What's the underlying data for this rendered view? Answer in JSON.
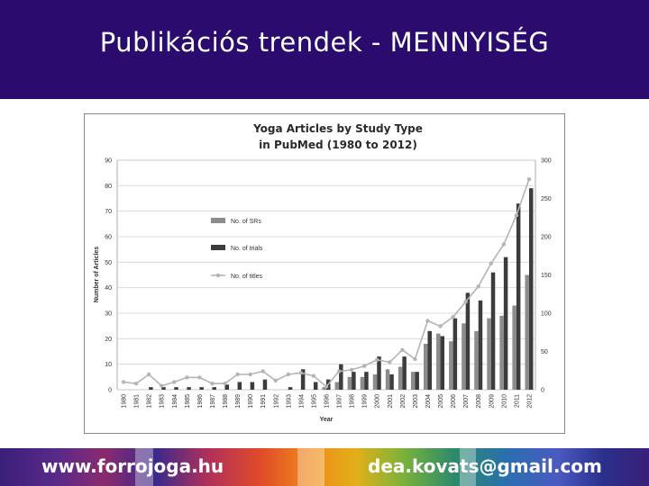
{
  "slide": {
    "title": "Publikációs trendek - MENNYISÉG"
  },
  "footer": {
    "website": "www.forrojoga.hu",
    "email": "dea.kovats@gmail.com"
  },
  "colors": {
    "header_bg": "#2b0b6e",
    "srs": "#8c8c8c",
    "trials": "#3c3c3c",
    "titles": "#b4b4b4"
  },
  "chart_data": {
    "type": "bar",
    "title": "Yoga Articles by Study Type",
    "subtitle": "in PubMed (1980 to 2012)",
    "xlabel": "Year",
    "ylabel": "Number of Articles",
    "ylim": [
      0,
      90
    ],
    "y2lim": [
      0,
      300
    ],
    "y_ticks": [
      0,
      10,
      20,
      30,
      40,
      50,
      60,
      70,
      80,
      90
    ],
    "y2_ticks": [
      0,
      50,
      100,
      150,
      200,
      250,
      300
    ],
    "grid": true,
    "legend_position": "top-left",
    "categories": [
      "1980",
      "1981",
      "1982",
      "1983",
      "1984",
      "1985",
      "1986",
      "1987",
      "1988",
      "1989",
      "1990",
      "1991",
      "1992",
      "1993",
      "1994",
      "1995",
      "1996",
      "1997",
      "1998",
      "1999",
      "2000",
      "2001",
      "2002",
      "2003",
      "2004",
      "2005",
      "2006",
      "2007",
      "2008",
      "2009",
      "2010",
      "2011",
      "2012"
    ],
    "series": [
      {
        "name": "No. of SRs",
        "axis": "left",
        "type": "bar",
        "values": [
          0,
          0,
          0,
          0,
          0,
          0,
          0,
          0,
          0,
          0,
          0,
          0,
          0,
          0,
          0,
          0,
          1,
          3,
          5,
          5,
          6,
          8,
          9,
          7,
          18,
          22,
          19,
          26,
          23,
          28,
          29,
          33,
          45
        ]
      },
      {
        "name": "No. of trials",
        "axis": "left",
        "type": "bar",
        "values": [
          0,
          0,
          1,
          1,
          1,
          1,
          1,
          1,
          2,
          3,
          3,
          4,
          0,
          1,
          8,
          3,
          4,
          10,
          7,
          7,
          13,
          6,
          13,
          7,
          23,
          21,
          28,
          38,
          35,
          46,
          52,
          73,
          79
        ]
      },
      {
        "name": "No. of titles",
        "axis": "right",
        "type": "line",
        "values": [
          10,
          8,
          20,
          5,
          10,
          16,
          16,
          8,
          8,
          20,
          20,
          24,
          12,
          20,
          22,
          18,
          4,
          24,
          26,
          31,
          39,
          36,
          52,
          40,
          90,
          83,
          95,
          115,
          135,
          165,
          190,
          228,
          275
        ]
      }
    ]
  }
}
